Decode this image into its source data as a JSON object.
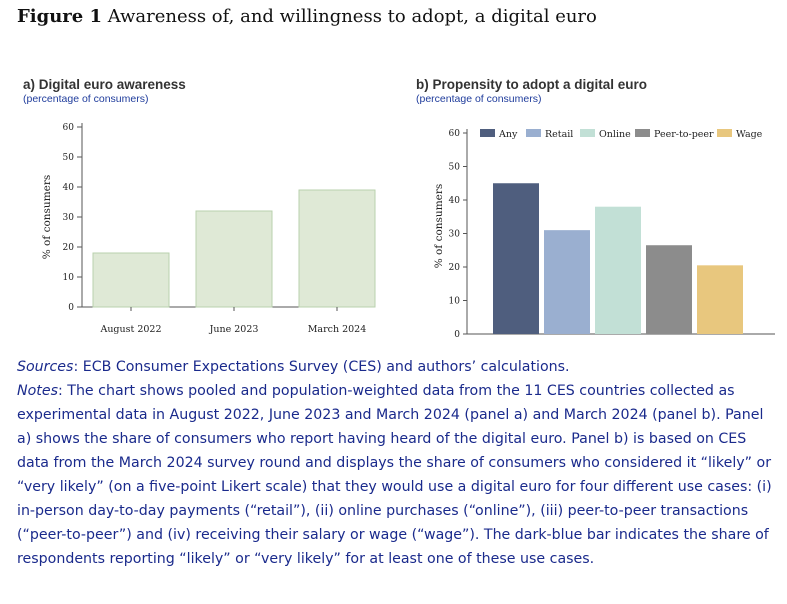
{
  "figure": {
    "label": "Figure 1",
    "title": "Awareness of, and willingness to adopt, a digital euro"
  },
  "colors": {
    "awareness_fill": "#dfe9d6",
    "awareness_stroke": "#b9d1ad",
    "notes_text": "#1a2a8c"
  },
  "chart_data": [
    {
      "type": "bar",
      "title": "a) Digital euro awareness",
      "subtitle": "(percentage of consumers)",
      "ylabel": "% of consumers",
      "xlabel": "",
      "ylim": [
        0,
        60
      ],
      "yticks": [
        0,
        10,
        20,
        30,
        40,
        50,
        60
      ],
      "categories": [
        "August 2022",
        "June 2023",
        "March 2024"
      ],
      "values": [
        18,
        32,
        39
      ],
      "grid": false
    },
    {
      "type": "bar",
      "title": "b) Propensity to adopt a digital euro",
      "subtitle": "(percentage of consumers)",
      "ylabel": "% of consumers",
      "xlabel": "",
      "ylim": [
        0,
        60
      ],
      "yticks": [
        0,
        10,
        20,
        30,
        40,
        50,
        60
      ],
      "legend_position": "top",
      "grid": false,
      "series": [
        {
          "name": "Any",
          "value": 45,
          "color": "#4f5e7e"
        },
        {
          "name": "Retail",
          "value": 31,
          "color": "#9aafd0"
        },
        {
          "name": "Online",
          "value": 38,
          "color": "#c2e0d6"
        },
        {
          "name": "Peer-to-peer",
          "value": 26.5,
          "color": "#8c8c8c"
        },
        {
          "name": "Wage",
          "value": 20.5,
          "color": "#e8c77e"
        }
      ]
    }
  ],
  "sources": {
    "label": "Sources",
    "text": ": ECB Consumer Expectations Survey (CES) and authors’ calculations."
  },
  "notes": {
    "label": "Notes",
    "text": ": The chart shows pooled and population-weighted data from the 11 CES countries collected as experimental data in August 2022, June 2023 and March 2024 (panel a) and March 2024 (panel b). Panel a) shows the share of consumers who report having heard of the digital euro. Panel b) is based on CES data from the March 2024 survey round and displays the share of consumers who considered it “likely” or “very likely” (on a five-point Likert scale) that they would use a digital euro for four different use cases: (i) in-person day-to-day payments (“retail”), (ii) online purchases (“online”), (iii) peer-to-peer transactions (“peer-to-peer”) and (iv) receiving their salary or wage (“wage”). The dark-blue bar indicates the share of respondents reporting “likely” or “very likely” for at least one of these use cases."
  }
}
